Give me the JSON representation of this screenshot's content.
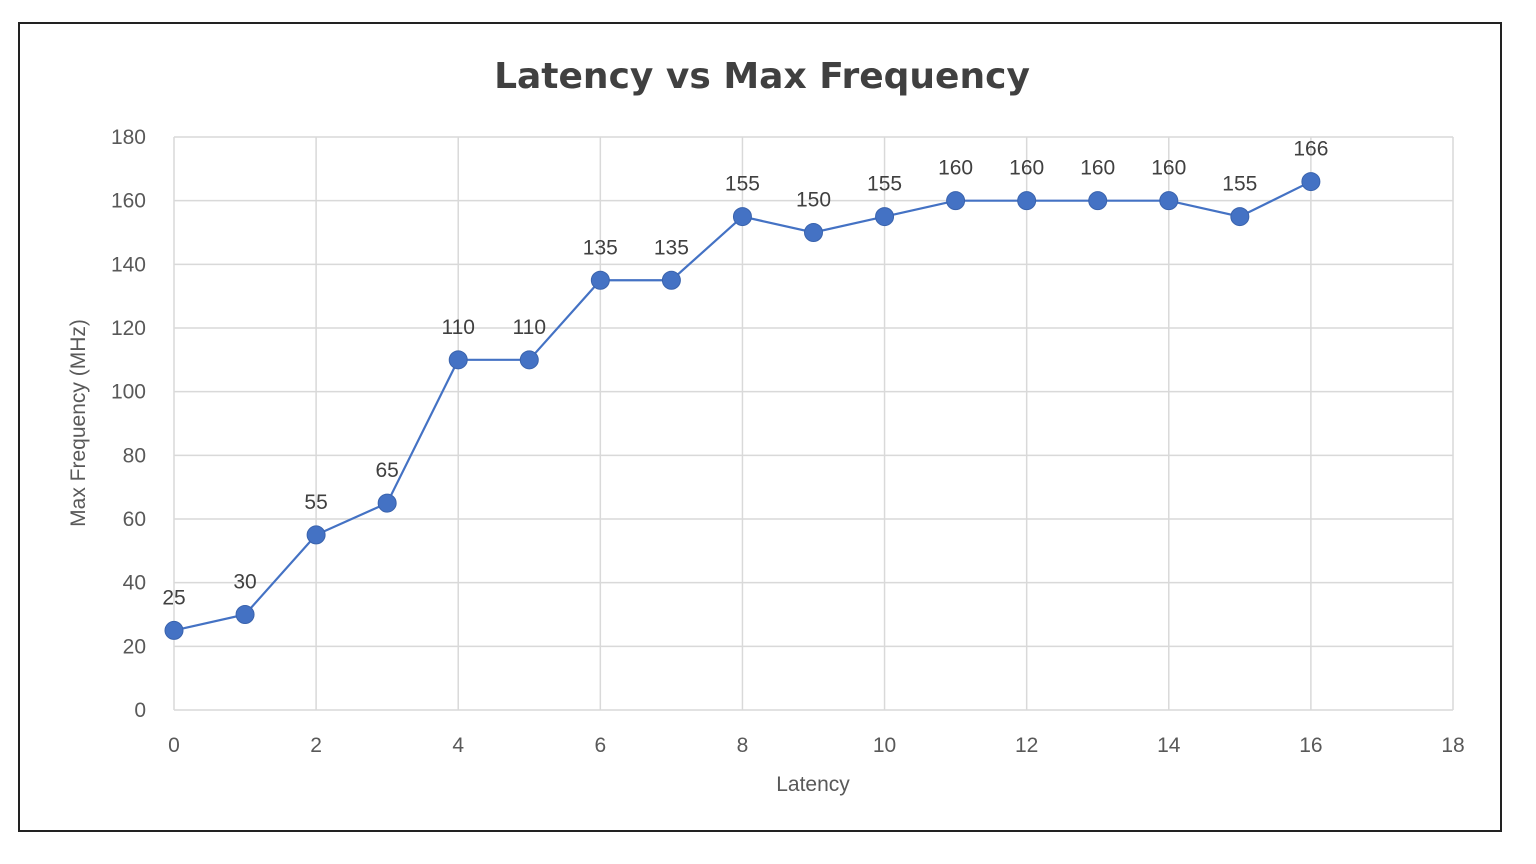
{
  "chart_data": {
    "type": "line",
    "title": "Latency vs Max Frequency",
    "xlabel": "Latency",
    "ylabel": "Max Frequency (MHz)",
    "xlim": [
      0,
      18
    ],
    "ylim": [
      0,
      180
    ],
    "xticks": [
      0,
      2,
      4,
      6,
      8,
      10,
      12,
      14,
      16,
      18
    ],
    "yticks": [
      0,
      20,
      40,
      60,
      80,
      100,
      120,
      140,
      160,
      180
    ],
    "grid": true,
    "legend": "none",
    "series": [
      {
        "color": "#4472C4",
        "x": [
          0,
          1,
          2,
          3,
          4,
          5,
          6,
          7,
          8,
          9,
          10,
          11,
          12,
          13,
          14,
          15,
          16
        ],
        "y": [
          25,
          30,
          55,
          65,
          110,
          110,
          135,
          135,
          155,
          150,
          155,
          160,
          160,
          160,
          160,
          155,
          166
        ],
        "data_labels": [
          "25",
          "30",
          "55",
          "65",
          "110",
          "110",
          "135",
          "135",
          "155",
          "150",
          "155",
          "160",
          "160",
          "160",
          "160",
          "155",
          "166"
        ]
      }
    ]
  }
}
